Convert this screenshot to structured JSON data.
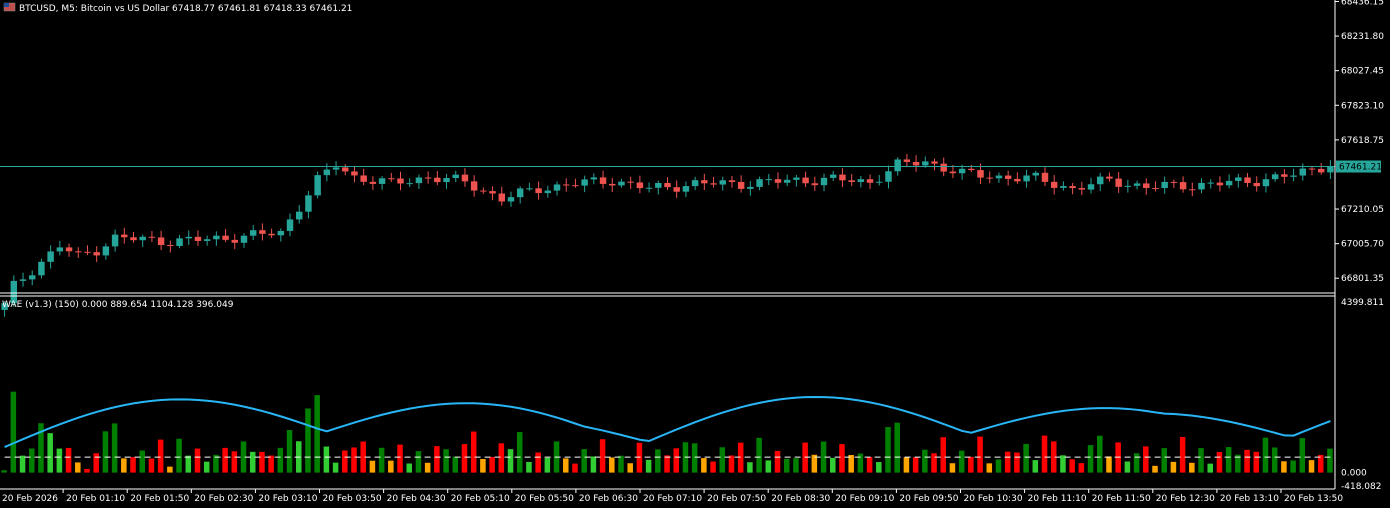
{
  "window": {
    "symbol_title": "BTCUSD, M5:  Bitcoin vs US Dollar  67418.77 67461.81 67418.33 67461.21"
  },
  "colors": {
    "background": "#000000",
    "bull_candle": "#26a69a",
    "bear_candle": "#ef5350",
    "price_line": "#26a69a",
    "wae_green": "#008000",
    "wae_lime": "#32cd32",
    "wae_red": "#ff0000",
    "wae_orange": "#ffa500",
    "explosion_line": "#29b6f6",
    "deadzone_line": "#ffffff",
    "axis_text": "#ffffff"
  },
  "chart_data": [
    {
      "type": "candlestick",
      "title": "BTCUSD, M5:  Bitcoin vs US Dollar  67418.77 67461.81 67418.33 67461.21",
      "y_ticks": [
        "68436.15",
        "68231.80",
        "68027.45",
        "67823.10",
        "67618.75",
        "67414.40",
        "67210.05",
        "67005.70",
        "66801.35"
      ],
      "ylim": [
        66720,
        68445
      ],
      "current_price_label": "67461.21",
      "current_price": 67461.21,
      "bar_count": 145,
      "anchors": [
        [
          0,
          66640
        ],
        [
          1,
          66755
        ],
        [
          4,
          66900
        ],
        [
          6,
          66990
        ],
        [
          8,
          66930
        ],
        [
          10,
          66970
        ],
        [
          12,
          67040
        ],
        [
          18,
          67020
        ],
        [
          22,
          67030
        ],
        [
          26,
          67050
        ],
        [
          30,
          67070
        ],
        [
          34,
          67380
        ],
        [
          36,
          67470
        ],
        [
          38,
          67400
        ],
        [
          42,
          67360
        ],
        [
          46,
          67400
        ],
        [
          50,
          67370
        ],
        [
          54,
          67270
        ],
        [
          58,
          67330
        ],
        [
          62,
          67360
        ],
        [
          66,
          67380
        ],
        [
          70,
          67330
        ],
        [
          75,
          67360
        ],
        [
          80,
          67360
        ],
        [
          86,
          67380
        ],
        [
          90,
          67385
        ],
        [
          94,
          67370
        ],
        [
          97,
          67470
        ],
        [
          100,
          67490
        ],
        [
          104,
          67420
        ],
        [
          108,
          67400
        ],
        [
          112,
          67390
        ],
        [
          116,
          67330
        ],
        [
          120,
          67380
        ],
        [
          124,
          67340
        ],
        [
          128,
          67350
        ],
        [
          132,
          67360
        ],
        [
          136,
          67380
        ],
        [
          140,
          67410
        ],
        [
          143,
          67461
        ]
      ]
    },
    {
      "type": "bar",
      "title": "WAE (v1.3) (150) 0.000 889.654 1104.128 396.049",
      "y_ticks": [
        "4399.811",
        "0.000",
        "-418.082"
      ],
      "ylim": [
        -418.082,
        4399.811
      ],
      "series_names": [
        "trend_up_strong",
        "trend_up_weak",
        "trend_down_strong",
        "trend_down_weak",
        "explosion",
        "deadzone"
      ]
    }
  ],
  "x_labels": [
    "20 Feb 2026",
    "20 Feb 01:10",
    "20 Feb 01:50",
    "20 Feb 02:30",
    "20 Feb 03:10",
    "20 Feb 03:50",
    "20 Feb 04:30",
    "20 Feb 05:10",
    "20 Feb 05:50",
    "20 Feb 06:30",
    "20 Feb 07:10",
    "20 Feb 07:50",
    "20 Feb 08:30",
    "20 Feb 09:10",
    "20 Feb 09:50",
    "20 Feb 10:30",
    "20 Feb 11:10",
    "20 Feb 11:50",
    "20 Feb 12:30",
    "20 Feb 13:10",
    "20 Feb 13:50"
  ]
}
